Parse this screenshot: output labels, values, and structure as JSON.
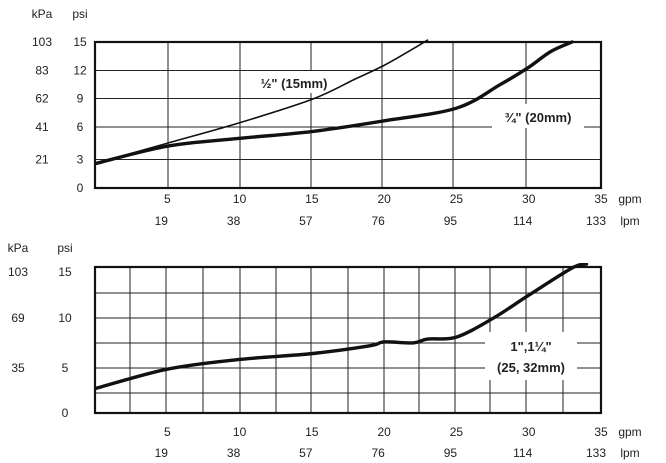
{
  "chart_data": [
    {
      "type": "line",
      "x_unit": "gpm",
      "x_unit_alt": "lpm",
      "y_unit": "psi",
      "y_unit_alt": "kPa",
      "xlim": [
        0,
        35
      ],
      "ylim": [
        0,
        15
      ],
      "x_ticks": [
        5,
        10,
        15,
        20,
        25,
        30,
        35
      ],
      "x_ticks_alt": [
        "19",
        "38",
        "57",
        "76",
        "95",
        "114",
        "133"
      ],
      "y_ticks": [
        0,
        3,
        6,
        9,
        12,
        15
      ],
      "y_ticks_alt": [
        "",
        "21",
        "41",
        "62",
        "83",
        "103"
      ],
      "grid": true,
      "series": [
        {
          "name": "½\" (15mm)",
          "x": [
            0,
            5,
            10,
            15,
            18,
            20,
            22,
            23
          ],
          "y": [
            2.5,
            4.6,
            6.7,
            9.1,
            11.2,
            12.6,
            14.3,
            15.2
          ]
        },
        {
          "name": "¾\" (20mm)",
          "x": [
            0,
            5,
            10,
            15,
            20,
            25,
            28,
            30,
            31.5,
            33
          ],
          "y": [
            2.5,
            4.3,
            5.1,
            5.8,
            6.9,
            8.2,
            10.6,
            12.4,
            14.0,
            15.0
          ]
        }
      ]
    },
    {
      "type": "line",
      "x_unit": "gpm",
      "x_unit_alt": "lpm",
      "y_unit": "psi",
      "y_unit_alt": "kPa",
      "xlim": [
        0,
        35
      ],
      "ylim": [
        0,
        15
      ],
      "x_ticks": [
        5,
        10,
        15,
        20,
        25,
        30,
        35
      ],
      "x_ticks_alt": [
        "19",
        "38",
        "57",
        "76",
        "95",
        "114",
        "133"
      ],
      "y_ticks": [
        0,
        5,
        10,
        15
      ],
      "y_ticks_alt": [
        "",
        "35",
        "69",
        "103"
      ],
      "grid": true,
      "series": [
        {
          "name": "1\",1¼\" (25, 32mm)",
          "x": [
            0,
            5,
            10,
            15,
            19,
            20,
            22,
            23,
            25,
            27.5,
            30,
            33,
            34
          ],
          "y": [
            2.5,
            4.5,
            5.5,
            6.1,
            6.9,
            7.3,
            7.2,
            7.6,
            7.8,
            9.7,
            12.1,
            14.9,
            15.3
          ]
        }
      ]
    }
  ]
}
